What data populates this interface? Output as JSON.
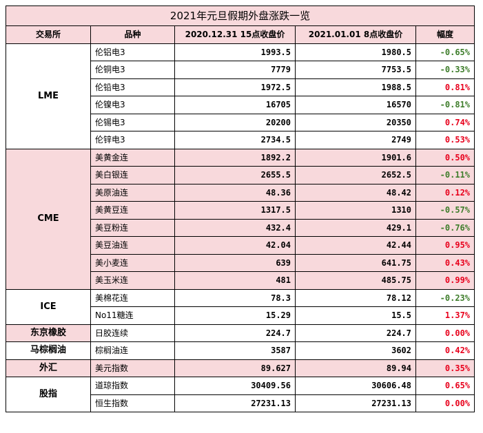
{
  "title": "2021年元旦假期外盘涨跌一览",
  "headers": [
    "交易所",
    "品种",
    "2020.12.31 15点收盘价",
    "2021.01.01 8点收盘价",
    "幅度"
  ],
  "colors": {
    "header_bg": "#f8d9dc",
    "up": "#e8001c",
    "down": "#3e7d2b"
  },
  "groups": [
    {
      "exchange": "LME",
      "rows": [
        {
          "name": "伦铝电3",
          "p1": "1993.5",
          "p2": "1980.5",
          "chg": "-0.65%"
        },
        {
          "name": "伦铜电3",
          "p1": "7779",
          "p2": "7753.5",
          "chg": "-0.33%"
        },
        {
          "name": "伦铅电3",
          "p1": "1972.5",
          "p2": "1988.5",
          "chg": "0.81%"
        },
        {
          "name": "伦镍电3",
          "p1": "16705",
          "p2": "16570",
          "chg": "-0.81%"
        },
        {
          "name": "伦锡电3",
          "p1": "20200",
          "p2": "20350",
          "chg": "0.74%"
        },
        {
          "name": "伦锌电3",
          "p1": "2734.5",
          "p2": "2749",
          "chg": "0.53%"
        }
      ]
    },
    {
      "exchange": "CME",
      "rows": [
        {
          "name": "美黄金连",
          "p1": "1892.2",
          "p2": "1901.6",
          "chg": "0.50%"
        },
        {
          "name": "美白银连",
          "p1": "2655.5",
          "p2": "2652.5",
          "chg": "-0.11%"
        },
        {
          "name": "美原油连",
          "p1": "48.36",
          "p2": "48.42",
          "chg": "0.12%"
        },
        {
          "name": "美黄豆连",
          "p1": "1317.5",
          "p2": "1310",
          "chg": "-0.57%"
        },
        {
          "name": "美豆粉连",
          "p1": "432.4",
          "p2": "429.1",
          "chg": "-0.76%"
        },
        {
          "name": "美豆油连",
          "p1": "42.04",
          "p2": "42.44",
          "chg": "0.95%"
        },
        {
          "name": "美小麦连",
          "p1": "639",
          "p2": "641.75",
          "chg": "0.43%"
        },
        {
          "name": "美玉米连",
          "p1": "481",
          "p2": "485.75",
          "chg": "0.99%"
        }
      ]
    },
    {
      "exchange": "ICE",
      "rows": [
        {
          "name": "美棉花连",
          "p1": "78.3",
          "p2": "78.12",
          "chg": "-0.23%"
        },
        {
          "name": "No11糖连",
          "p1": "15.29",
          "p2": "15.5",
          "chg": "1.37%"
        }
      ]
    },
    {
      "exchange": "东京橡胶",
      "rows": [
        {
          "name": "日胶连续",
          "p1": "224.7",
          "p2": "224.7",
          "chg": "0.00%"
        }
      ]
    },
    {
      "exchange": "马棕榈油",
      "rows": [
        {
          "name": "棕榈油连",
          "p1": "3587",
          "p2": "3602",
          "chg": "0.42%"
        }
      ]
    },
    {
      "exchange": "外汇",
      "rows": [
        {
          "name": "美元指数",
          "p1": "89.627",
          "p2": "89.94",
          "chg": "0.35%"
        }
      ]
    },
    {
      "exchange": "股指",
      "rows": [
        {
          "name": "道琼指数",
          "p1": "30409.56",
          "p2": "30606.48",
          "chg": "0.65%"
        },
        {
          "name": "恒生指数",
          "p1": "27231.13",
          "p2": "27231.13",
          "chg": "0.00%"
        }
      ]
    }
  ]
}
